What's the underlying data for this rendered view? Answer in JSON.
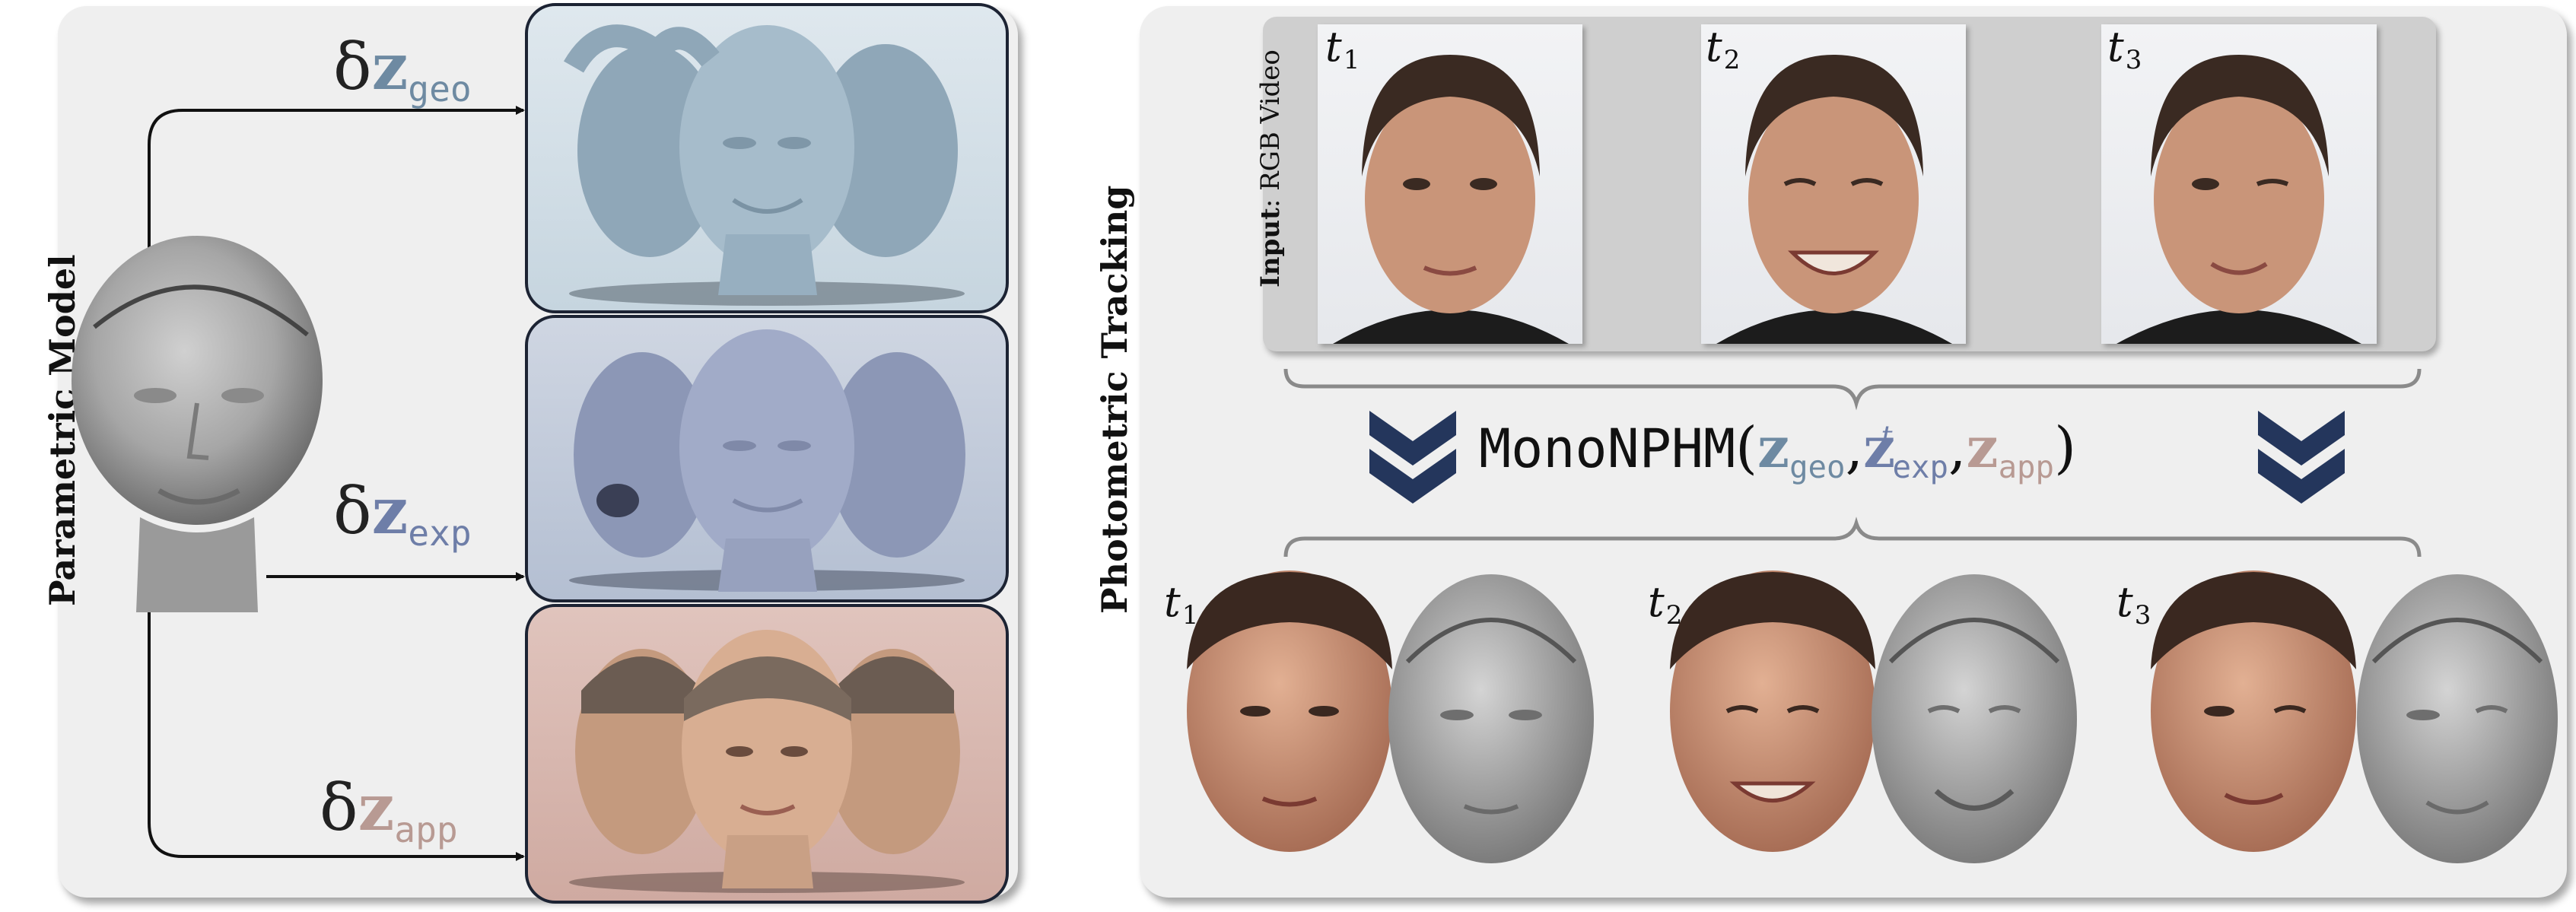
{
  "left": {
    "title": "Parametric Model",
    "labels": {
      "geo": {
        "delta": "δ",
        "z": "z",
        "sub": "geo"
      },
      "exp": {
        "delta": "δ",
        "z": "z",
        "sub": "exp"
      },
      "app": {
        "delta": "δ",
        "z": "z",
        "sub": "app"
      }
    }
  },
  "right": {
    "title": "Photometric Tracking",
    "input_bold": "Input",
    "input_rest": ": RGB Video",
    "frames": [
      {
        "t": "t",
        "sub": "1"
      },
      {
        "t": "t",
        "sub": "2"
      },
      {
        "t": "t",
        "sub": "3"
      }
    ],
    "formula": {
      "name": "MonoNPHM",
      "open": "(",
      "comma1": ",",
      "comma2": ",",
      "close": ")",
      "z": "z",
      "geo": "geo",
      "exp": "exp",
      "exp_sup": "t",
      "app": "app"
    }
  },
  "colors": {
    "geo": "#6e8aa2",
    "exp": "#6e7ea8",
    "app": "#b89a93",
    "chevron": "#24365c",
    "geo_box": "#cddbe4",
    "exp_box": "#bcc6d8",
    "app_box": "#d8b8b0",
    "mesh": "#a3a3a3",
    "brace": "#8a8a8a"
  }
}
